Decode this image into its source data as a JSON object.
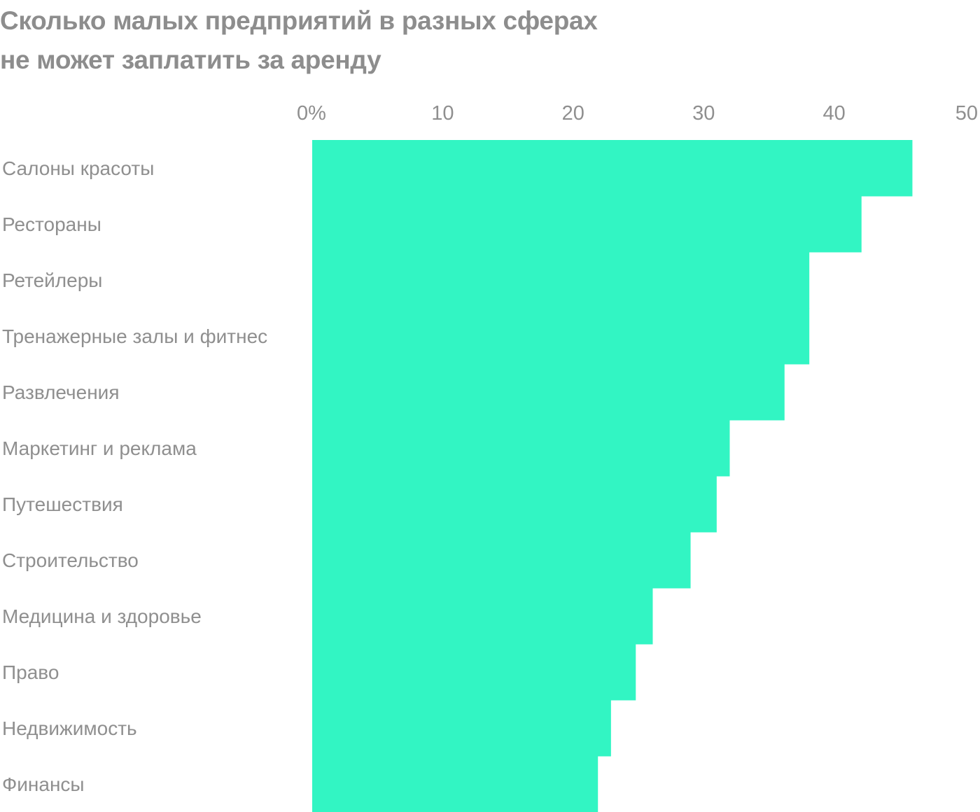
{
  "chart_data": {
    "type": "bar",
    "orientation": "horizontal",
    "title_lines": [
      "Сколько малых предприятий в разных сферах",
      "не может заплатить за аренду"
    ],
    "categories": [
      "Салоны красоты",
      "Рестораны",
      "Ретейлеры",
      "Тренажерные залы и фитнес",
      "Развлечения",
      "Маркетинг и реклама",
      "Путешествия",
      "Строительство",
      "Медицина и здоровье",
      "Право",
      "Недвижимость",
      "Финансы"
    ],
    "values": [
      46,
      42.1,
      38.1,
      38.1,
      36.2,
      32,
      31,
      29,
      26.1,
      24.8,
      22.9,
      21.9
    ],
    "xlim": [
      0,
      50
    ],
    "ticks": [
      0,
      10,
      20,
      30,
      40,
      50
    ],
    "tick_labels": [
      "0%",
      "10",
      "20",
      "30",
      "40",
      "50"
    ],
    "axis_position": "top",
    "grid": false,
    "legend": "none",
    "bar_color": "#32f5c3",
    "text_color": "#8f8f8f"
  }
}
